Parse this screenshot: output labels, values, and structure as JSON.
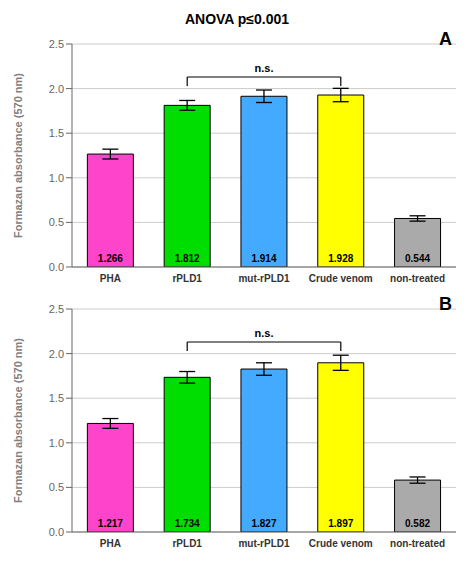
{
  "chart_data": [
    {
      "type": "bar",
      "title": "ANOVA  p≤0.001",
      "categories": [
        "PHA",
        "rPLD1",
        "mut-rPLD1",
        "Crude venom",
        "non-treated"
      ],
      "values": [
        1.266,
        1.812,
        1.914,
        1.928,
        0.544
      ],
      "errors": [
        0.055,
        0.055,
        0.07,
        0.075,
        0.03
      ],
      "colors": [
        "#FF44CC",
        "#00DD00",
        "#44AAFF",
        "#FFFF00",
        "#AAAAAA"
      ],
      "ylabel": "Formazan absorbance (570 nm)",
      "ylim": [
        0,
        2.5
      ],
      "yticks": [
        {
          "value": 0,
          "label": "0.0"
        },
        0.5,
        {
          "value": 1.0,
          "label": "1.0"
        },
        1.5,
        {
          "value": 2.0,
          "label": "2.0"
        },
        2.5
      ],
      "grid": true,
      "data_labels": true,
      "annotations": [
        {
          "text": "n.s.",
          "x": [
            "rPLD1",
            "Crude venom"
          ],
          "y": 2.13
        },
        {
          "text": "A"
        }
      ]
    },
    {
      "type": "bar",
      "categories": [
        "PHA",
        "rPLD1",
        "mut-rPLD1",
        "Crude venom",
        "non-treated"
      ],
      "values": [
        1.217,
        1.734,
        1.827,
        1.897,
        0.582
      ],
      "errors": [
        0.055,
        0.065,
        0.07,
        0.085,
        0.035
      ],
      "colors": [
        "#FF44CC",
        "#00DD00",
        "#44AAFF",
        "#FFFF00",
        "#AAAAAA"
      ],
      "ylabel": "Formazan absorbance (570 nm)",
      "ylim": [
        0,
        2.5
      ],
      "yticks": [
        {
          "value": 0,
          "label": "0.0"
        },
        0.5,
        {
          "value": 1.0,
          "label": "1.0"
        },
        1.5,
        {
          "value": 2.0,
          "label": "2.0"
        },
        2.5
      ],
      "grid": true,
      "data_labels": true,
      "annotations": [
        {
          "text": "n.s.",
          "x": [
            "rPLD1",
            "Crude venom"
          ],
          "y": 2.13
        },
        {
          "text": "B"
        }
      ]
    }
  ]
}
